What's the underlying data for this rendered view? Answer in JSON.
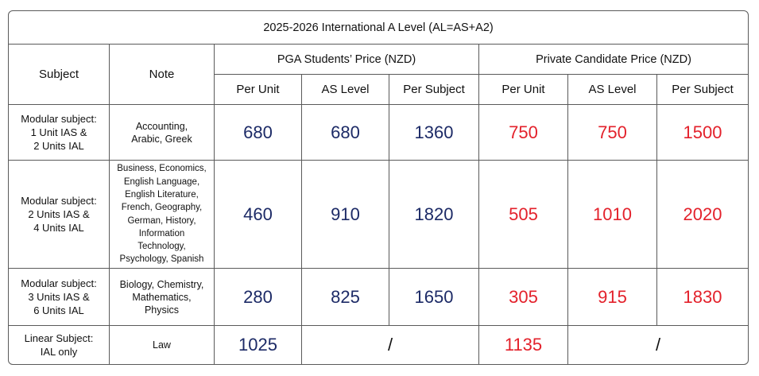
{
  "title": "2025-2026 International A Level (AL=AS+A2)",
  "headers": {
    "subject": "Subject",
    "note": "Note",
    "pga_group": "PGA Students’ Price (NZD)",
    "private_group": "Private Candidate Price (NZD)",
    "per_unit": "Per Unit",
    "as_level": "AS Level",
    "per_subject": "Per Subject"
  },
  "rows": [
    {
      "subject": [
        "Modular subject:",
        "1 Unit IAS &",
        "2 Units IAL"
      ],
      "note": [
        "Accounting,",
        "Arabic, Greek"
      ],
      "pga": {
        "per_unit": "680",
        "as_level": "680",
        "per_subject": "1360"
      },
      "private": {
        "per_unit": "750",
        "as_level": "750",
        "per_subject": "1500"
      }
    },
    {
      "subject": [
        "Modular subject:",
        "2 Units IAS &",
        "4 Units IAL"
      ],
      "note": [
        "Business, Economics,",
        "English Language,",
        "English Literature,",
        "French, Geography,",
        "German, History,",
        "Information",
        "Technology,",
        "Psychology, Spanish"
      ],
      "pga": {
        "per_unit": "460",
        "as_level": "910",
        "per_subject": "1820"
      },
      "private": {
        "per_unit": "505",
        "as_level": "1010",
        "per_subject": "2020"
      }
    },
    {
      "subject": [
        "Modular subject:",
        "3 Units IAS &",
        "6 Units IAL"
      ],
      "note": [
        "Biology, Chemistry,",
        "Mathematics,",
        "Physics"
      ],
      "pga": {
        "per_unit": "280",
        "as_level": "825",
        "per_subject": "1650"
      },
      "private": {
        "per_unit": "305",
        "as_level": "915",
        "per_subject": "1830"
      }
    },
    {
      "subject": [
        "Linear Subject:",
        "IAL only"
      ],
      "note": [
        "Law"
      ],
      "pga": {
        "per_unit": "1025",
        "rest": "/"
      },
      "private": {
        "per_unit": "1135",
        "rest": "/"
      }
    }
  ],
  "colors": {
    "pga": "#1c2a66",
    "private": "#e3212b",
    "border": "#5a5a5a"
  }
}
